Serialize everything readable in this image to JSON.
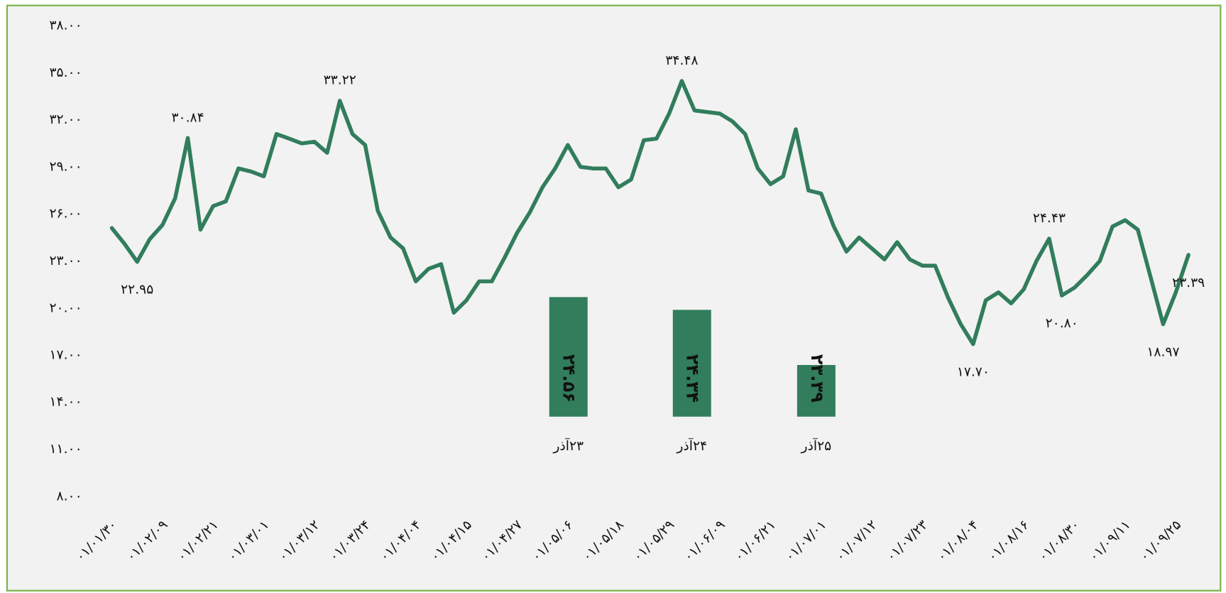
{
  "chart_data": [
    {
      "type": "line",
      "color": "#317d5c",
      "categories": [
        "۰۱/۰۱/۳۰",
        null,
        null,
        null,
        "۰۱/۰۲/۰۹",
        null,
        null,
        null,
        "۰۱/۰۲/۲۱",
        null,
        null,
        null,
        "۰۱/۰۳/۰۱",
        null,
        null,
        null,
        "۰۱/۰۳/۱۲",
        null,
        null,
        null,
        "۰۱/۰۳/۲۴",
        null,
        null,
        null,
        "۰۱/۰۴/۰۴",
        null,
        null,
        null,
        "۰۱/۰۴/۱۵",
        null,
        null,
        null,
        "۰۱/۰۴/۲۷",
        null,
        null,
        null,
        "۰۱/۰۵/۰۶",
        null,
        null,
        null,
        "۰۱/۰۵/۱۸",
        null,
        null,
        null,
        "۰۱/۰۵/۲۹",
        null,
        null,
        null,
        "۰۱/۰۶/۰۹",
        null,
        null,
        null,
        "۰۱/۰۶/۲۱",
        null,
        null,
        null,
        "۰۱/۰۷/۰۱",
        null,
        null,
        null,
        "۰۱/۰۷/۱۲",
        null,
        null,
        null,
        "۰۱/۰۷/۲۳",
        null,
        null,
        null,
        "۰۱/۰۸/۰۴",
        null,
        null,
        null,
        "۰۱/۰۸/۱۶",
        null,
        null,
        null,
        "۰۱/۰۸/۳۰",
        null,
        null,
        null,
        "۰۱/۰۹/۱۱",
        null,
        null,
        null,
        "۰۱/۰۹/۲۵",
        null
      ],
      "values": [
        25.1,
        24.1,
        22.95,
        24.4,
        25.3,
        27.0,
        30.84,
        25.0,
        26.5,
        26.8,
        28.9,
        28.7,
        28.4,
        31.1,
        30.8,
        30.5,
        30.6,
        29.9,
        33.22,
        31.1,
        30.4,
        26.2,
        24.5,
        23.8,
        21.7,
        22.5,
        22.8,
        19.7,
        20.5,
        21.7,
        21.7,
        23.2,
        24.8,
        26.1,
        27.7,
        28.9,
        30.4,
        29.0,
        28.9,
        28.9,
        27.7,
        28.2,
        30.7,
        30.8,
        32.4,
        34.48,
        32.6,
        32.5,
        32.4,
        31.9,
        31.1,
        28.9,
        27.9,
        28.4,
        31.4,
        27.5,
        27.3,
        25.2,
        23.6,
        24.5,
        23.8,
        23.1,
        24.2,
        23.1,
        22.7,
        22.7,
        20.7,
        19.0,
        17.7,
        20.5,
        21.0,
        20.3,
        21.2,
        23.0,
        24.43,
        20.8,
        21.3,
        22.1,
        23.0,
        25.2,
        25.6,
        25.0,
        22.0,
        18.97,
        21.0,
        23.39
      ],
      "value_labels": [
        null,
        null,
        "۲۲.۹۵",
        null,
        null,
        null,
        "۳۰.۸۴",
        null,
        null,
        null,
        null,
        null,
        null,
        null,
        null,
        null,
        null,
        null,
        "۳۳.۲۲",
        null,
        null,
        null,
        null,
        null,
        null,
        null,
        null,
        null,
        null,
        null,
        null,
        null,
        null,
        null,
        null,
        null,
        null,
        null,
        null,
        null,
        null,
        null,
        null,
        null,
        null,
        "۳۴.۴۸",
        null,
        null,
        null,
        null,
        null,
        null,
        null,
        null,
        null,
        null,
        null,
        null,
        null,
        null,
        null,
        null,
        null,
        null,
        null,
        null,
        null,
        null,
        "۱۷.۷۰",
        null,
        null,
        null,
        null,
        null,
        "۲۴.۴۳",
        "۲۰.۸۰",
        null,
        null,
        null,
        null,
        null,
        null,
        null,
        "۱۸.۹۷",
        null,
        "۲۳.۳۹"
      ],
      "ylim": [
        8,
        38
      ],
      "yticks": [
        {
          "value": 8,
          "label": "۸.۰۰"
        },
        {
          "value": 11,
          "label": "۱۱.۰۰"
        },
        {
          "value": 14,
          "label": "۱۴.۰۰"
        },
        {
          "value": 17,
          "label": "۱۷.۰۰"
        },
        {
          "value": 20,
          "label": "۲۰.۰۰"
        },
        {
          "value": 23,
          "label": "۲۳.۰۰"
        },
        {
          "value": 26,
          "label": "۲۶.۰۰"
        },
        {
          "value": 29,
          "label": "۲۹.۰۰"
        },
        {
          "value": 32,
          "label": "۳۲.۰۰"
        },
        {
          "value": 35,
          "label": "۳۵.۰۰"
        },
        {
          "value": 38,
          "label": "۳۸.۰۰"
        }
      ]
    },
    {
      "type": "bar",
      "color": "#317d5c",
      "categories": [
        "۲۳آذر",
        "۲۴آذر",
        "۲۵آذر"
      ],
      "values": [
        24.56,
        24.34,
        23.39
      ],
      "value_labels": [
        "۲۴.۵۶",
        "۲۴.۳۴",
        "۲۳.۳۹"
      ],
      "ylim": [
        22.5,
        25
      ]
    }
  ]
}
